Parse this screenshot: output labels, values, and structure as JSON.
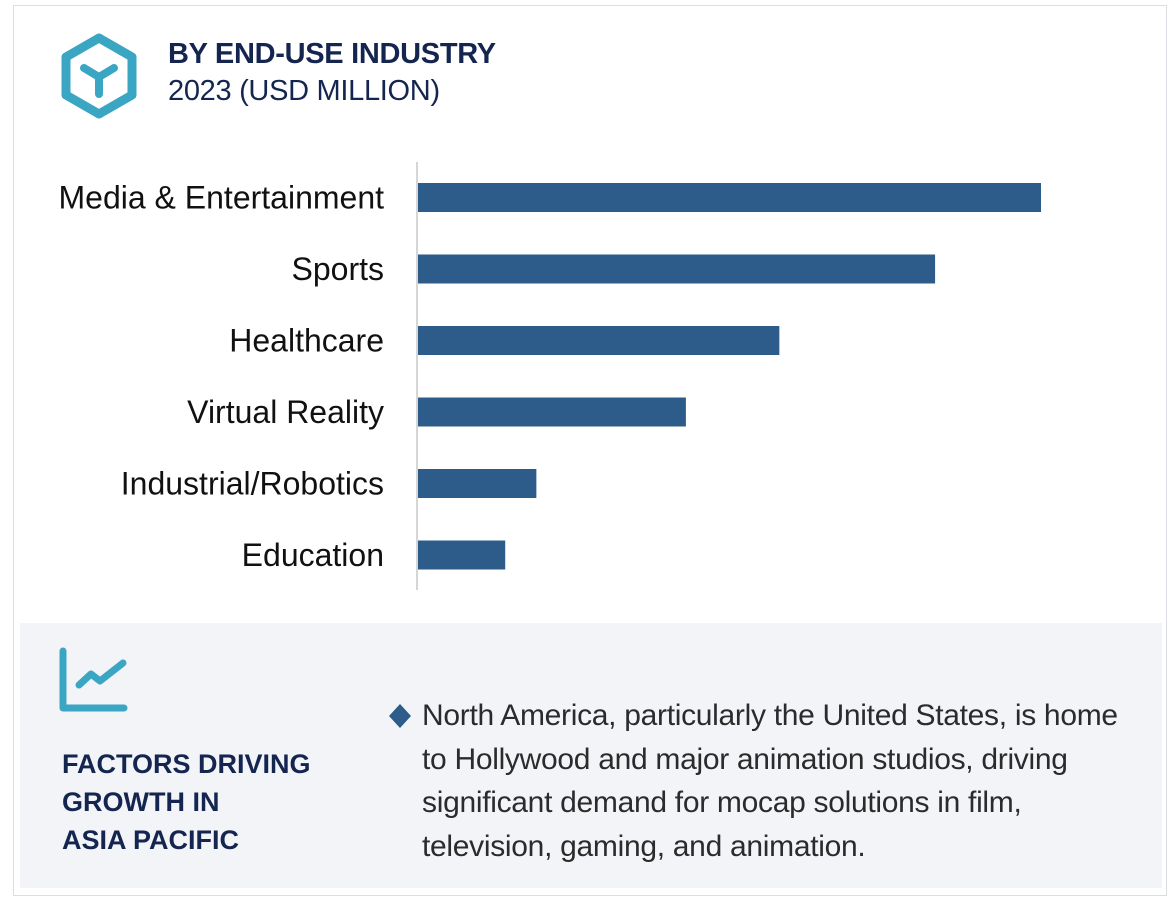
{
  "header": {
    "title": "BY END-USE INDUSTRY",
    "subtitle": "2023 (USD MILLION)",
    "icon": "hexagon-y-icon"
  },
  "colors": {
    "bar": "#2d5b8a",
    "accent": "#3aa6c4",
    "title": "#14254f",
    "panel_bg": "#f3f4f8"
  },
  "chart_data": {
    "type": "bar",
    "orientation": "horizontal",
    "title": "BY END-USE INDUSTRY",
    "subtitle": "2023 (USD MILLION)",
    "xlabel": "",
    "ylabel": "",
    "categories": [
      "Media & Entertainment",
      "Sports",
      "Healthcare",
      "Virtual Reality",
      "Industrial/Robotics",
      "Education"
    ],
    "values": [
      100,
      83,
      58,
      43,
      19,
      14
    ],
    "value_note": "No axis ticks shown; values are relative bar lengths indexed to Media & Entertainment = 100",
    "xlim": [
      0,
      100
    ],
    "grid": false,
    "legend": "none"
  },
  "panel": {
    "icon": "trend-chart-icon",
    "title_lines": [
      "FACTORS DRIVING",
      "GROWTH IN",
      "ASIA PACIFIC"
    ],
    "bullet_icon": "diamond-bullet-icon",
    "text": "North America, particularly the United States, is home to Hollywood and major animation studios, driving significant demand for mocap solutions in film, television, gaming, and animation."
  }
}
